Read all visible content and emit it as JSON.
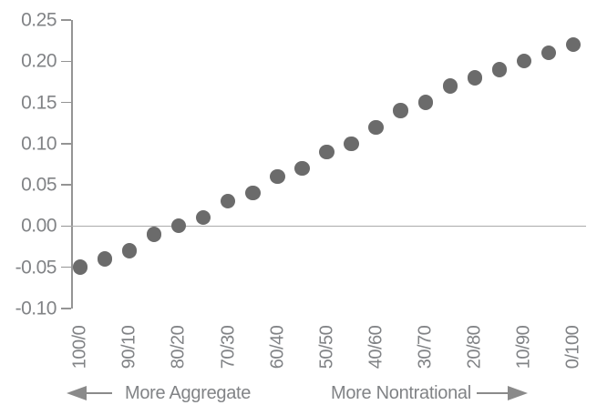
{
  "chart_data": {
    "type": "scatter",
    "title": "",
    "xlabel": "",
    "ylabel": "",
    "x": [
      "100/0",
      "95/5",
      "90/10",
      "85/15",
      "80/20",
      "75/25",
      "70/30",
      "65/35",
      "60/40",
      "55/45",
      "50/50",
      "45/55",
      "40/60",
      "35/65",
      "30/70",
      "25/75",
      "20/80",
      "15/85",
      "10/90",
      "5/95",
      "0/100"
    ],
    "values": [
      -0.05,
      -0.04,
      -0.03,
      -0.01,
      0.0,
      0.01,
      0.03,
      0.04,
      0.06,
      0.07,
      0.09,
      0.1,
      0.12,
      0.14,
      0.15,
      0.17,
      0.18,
      0.19,
      0.2,
      0.21,
      0.22
    ],
    "x_tick_labels": [
      "100/0",
      "90/10",
      "80/20",
      "70/30",
      "60/40",
      "50/50",
      "40/60",
      "30/70",
      "20/80",
      "10/90",
      "0/100"
    ],
    "y_ticks": [
      0.25,
      0.2,
      0.15,
      0.1,
      0.05,
      0.0,
      -0.05,
      -0.1
    ],
    "y_tick_labels": [
      "0.25",
      "0.20",
      "0.15",
      "0.10",
      "0.05",
      "0.00",
      "-0.05",
      "-0.10"
    ],
    "ylim": [
      -0.1,
      0.25
    ],
    "grid": false,
    "legend": "none",
    "zero_line": true,
    "marker": "circle",
    "annotations": {
      "left_arrow_label": "More Aggregate",
      "right_arrow_label": "More Nontrational"
    }
  },
  "colors": {
    "background": "#ffffff",
    "dot": "#6b6b6b",
    "axis": "#949494",
    "zero_line": "#ababab",
    "tick_text": "#818386",
    "arrow": "#8a8a8a"
  }
}
